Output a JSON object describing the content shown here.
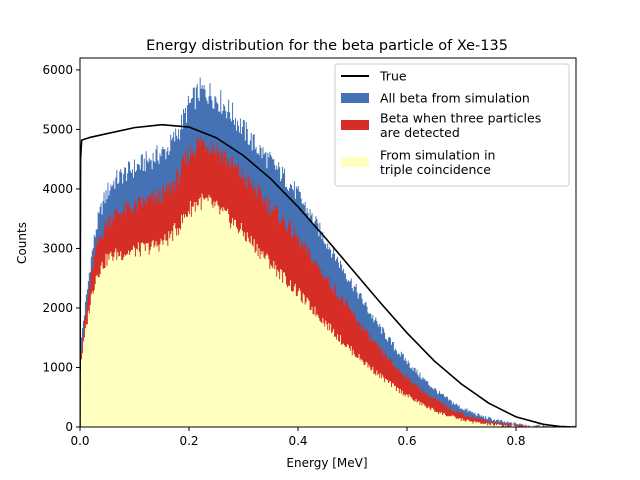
{
  "chart_data": {
    "type": "area",
    "title": "Energy distribution for the beta particle of Xe-135",
    "xlabel": "Energy [MeV]",
    "ylabel": "Counts",
    "xlim": [
      0.0,
      0.91
    ],
    "ylim": [
      0,
      6200
    ],
    "xticks": [
      0.0,
      0.2,
      0.4,
      0.6,
      0.8
    ],
    "xtick_labels": [
      "0.0",
      "0.2",
      "0.4",
      "0.6",
      "0.8"
    ],
    "yticks": [
      0,
      1000,
      2000,
      3000,
      4000,
      5000,
      6000
    ],
    "ytick_labels": [
      "0",
      "1000",
      "2000",
      "3000",
      "4000",
      "5000",
      "6000"
    ],
    "grid": false,
    "legend_position": "top-right",
    "series": [
      {
        "name": "All beta from simulation",
        "kind": "histogram",
        "color": "#4572b5",
        "x": [
          0.0,
          0.002,
          0.005,
          0.01,
          0.02,
          0.03,
          0.04,
          0.05,
          0.06,
          0.08,
          0.1,
          0.12,
          0.14,
          0.16,
          0.18,
          0.2,
          0.22,
          0.24,
          0.26,
          0.28,
          0.3,
          0.32,
          0.34,
          0.36,
          0.38,
          0.4,
          0.42,
          0.44,
          0.46,
          0.48,
          0.5,
          0.52,
          0.54,
          0.56,
          0.58,
          0.6,
          0.62,
          0.64,
          0.66,
          0.68,
          0.7,
          0.72,
          0.74,
          0.76,
          0.78,
          0.8,
          0.82,
          0.84,
          0.86,
          0.88,
          0.9
        ],
        "y": [
          1050,
          1400,
          1700,
          2050,
          2800,
          3350,
          3700,
          3950,
          4100,
          4250,
          4350,
          4450,
          4550,
          4650,
          4950,
          5400,
          5650,
          5600,
          5450,
          5250,
          5000,
          4750,
          4550,
          4350,
          4150,
          3900,
          3600,
          3300,
          3000,
          2700,
          2400,
          2100,
          1800,
          1550,
          1300,
          1100,
          900,
          720,
          560,
          430,
          320,
          240,
          170,
          120,
          80,
          50,
          30,
          15,
          5,
          2,
          0
        ]
      },
      {
        "name": "Beta when three particles are detected",
        "kind": "histogram",
        "color": "#d62e27",
        "x": [
          0.0,
          0.002,
          0.005,
          0.01,
          0.02,
          0.03,
          0.04,
          0.05,
          0.06,
          0.08,
          0.1,
          0.12,
          0.14,
          0.16,
          0.18,
          0.2,
          0.22,
          0.24,
          0.26,
          0.28,
          0.3,
          0.32,
          0.34,
          0.36,
          0.38,
          0.4,
          0.42,
          0.44,
          0.46,
          0.48,
          0.5,
          0.52,
          0.54,
          0.56,
          0.58,
          0.6,
          0.62,
          0.64,
          0.66,
          0.68,
          0.7,
          0.72,
          0.74,
          0.76,
          0.78,
          0.8,
          0.82,
          0.84,
          0.86,
          0.88,
          0.9
        ],
        "y": [
          950,
          1250,
          1500,
          1850,
          2500,
          3000,
          3250,
          3450,
          3550,
          3650,
          3700,
          3780,
          3850,
          3950,
          4200,
          4600,
          4800,
          4750,
          4600,
          4400,
          4200,
          4000,
          3800,
          3600,
          3400,
          3150,
          2900,
          2650,
          2400,
          2150,
          1900,
          1650,
          1400,
          1200,
          1000,
          830,
          670,
          530,
          410,
          310,
          230,
          165,
          115,
          78,
          50,
          30,
          17,
          8,
          3,
          1,
          0
        ]
      },
      {
        "name": "From simulation in triple coincidence",
        "kind": "histogram",
        "color": "#ffffc0",
        "x": [
          0.0,
          0.002,
          0.005,
          0.01,
          0.02,
          0.03,
          0.04,
          0.05,
          0.06,
          0.08,
          0.1,
          0.12,
          0.14,
          0.16,
          0.18,
          0.2,
          0.22,
          0.24,
          0.26,
          0.28,
          0.3,
          0.32,
          0.34,
          0.36,
          0.38,
          0.4,
          0.42,
          0.44,
          0.46,
          0.48,
          0.5,
          0.52,
          0.54,
          0.56,
          0.58,
          0.6,
          0.62,
          0.64,
          0.66,
          0.68,
          0.7,
          0.72,
          0.74,
          0.76,
          0.78,
          0.8,
          0.82,
          0.84,
          0.86,
          0.88,
          0.9
        ],
        "y": [
          850,
          1100,
          1300,
          1600,
          2150,
          2550,
          2700,
          2820,
          2880,
          2920,
          2960,
          3000,
          3050,
          3150,
          3350,
          3650,
          3800,
          3750,
          3600,
          3450,
          3250,
          3050,
          2850,
          2650,
          2450,
          2250,
          2050,
          1850,
          1650,
          1450,
          1270,
          1100,
          940,
          790,
          650,
          530,
          420,
          320,
          240,
          175,
          125,
          85,
          55,
          35,
          20,
          11,
          5,
          2,
          1,
          0,
          0
        ]
      },
      {
        "name": "True",
        "kind": "line",
        "color": "#000000",
        "x": [
          0.0,
          0.001,
          0.003,
          0.02,
          0.05,
          0.1,
          0.15,
          0.2,
          0.25,
          0.3,
          0.35,
          0.4,
          0.45,
          0.5,
          0.55,
          0.6,
          0.65,
          0.7,
          0.75,
          0.8,
          0.85,
          0.88,
          0.9,
          0.905
        ],
        "y": [
          0,
          4500,
          4820,
          4870,
          4930,
          5030,
          5080,
          5040,
          4860,
          4560,
          4170,
          3700,
          3180,
          2640,
          2100,
          1580,
          1110,
          720,
          400,
          170,
          45,
          10,
          1,
          0
        ]
      }
    ],
    "legend": [
      {
        "name": "True",
        "marker": "line",
        "color": "#000000",
        "lines": [
          "True"
        ]
      },
      {
        "name": "All beta from simulation",
        "marker": "patch",
        "color": "#4572b5",
        "lines": [
          "All beta from simulation"
        ]
      },
      {
        "name": "Beta when three particles are detected",
        "marker": "patch",
        "color": "#d62e27",
        "lines": [
          "Beta when three particles",
          "are detected"
        ]
      },
      {
        "name": "From simulation in triple coincidence",
        "marker": "patch",
        "color": "#ffffc0",
        "lines": [
          "From simulation in",
          "triple coincidence"
        ]
      }
    ]
  }
}
